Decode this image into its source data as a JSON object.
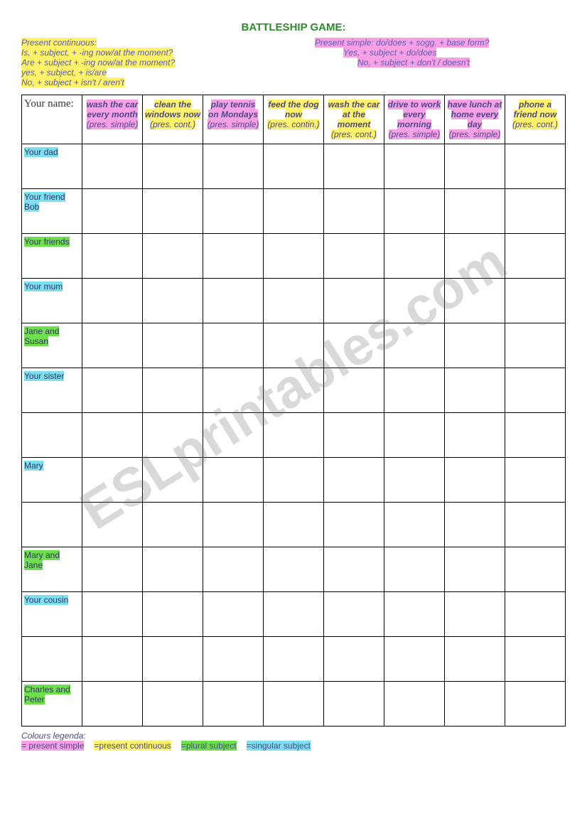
{
  "title": "BATTLESHIP GAME:",
  "watermark": "ESLprintables.com",
  "intro": {
    "left": {
      "heading": "Present continuous:",
      "l1": "Is, + subject, + -ing now/at the moment?",
      "l2": "Are + subject + -ing now/at the moment?",
      "l3": "yes, + subject, + is/are",
      "l4": "No, + subject + isn't / aren't"
    },
    "right": {
      "l1": "Present simple: do/does + sogg. + base form?",
      "l2": "Yes, + subject + do/does",
      "l3": "No, + subject + don't / doesn't"
    }
  },
  "corner": "Your name:",
  "columns": [
    {
      "action": "wash the car every month",
      "tense": "(pres. simple)",
      "hl": "hl-magenta"
    },
    {
      "action": "clean the windows now",
      "tense": "(pres. cont.)",
      "hl": "hl-yellow"
    },
    {
      "action": "play tennis on Mondays",
      "tense": "(pres. simple)",
      "hl": "hl-magenta"
    },
    {
      "action": "feed the dog now",
      "tense": "(pres. contin.)",
      "hl": "hl-yellow"
    },
    {
      "action": "wash the car at the moment",
      "tense": "(pres. cont.)",
      "hl": "hl-yellow"
    },
    {
      "action": "drive to work every morning",
      "tense": "(pres. simple)",
      "hl": "hl-magenta"
    },
    {
      "action": "have lunch at home every day",
      "tense": "(pres. simple)",
      "hl": "hl-magenta"
    },
    {
      "action": "phone a friend now",
      "tense": "(pres. cont.)",
      "hl": "hl-yellow"
    }
  ],
  "rows": [
    {
      "label": "Your dad",
      "hl": "hl-cyan"
    },
    {
      "label": "Your friend Bob",
      "hl": "hl-cyan"
    },
    {
      "label": "Your friends",
      "hl": "hl-green"
    },
    {
      "label": "Your mum",
      "hl": "hl-cyan"
    },
    {
      "label": "Jane and Susan",
      "hl": "hl-green"
    },
    {
      "label": "Your sister",
      "hl": "hl-cyan"
    },
    {
      "label": "",
      "hl": ""
    },
    {
      "label": "Mary",
      "hl": "hl-cyan"
    },
    {
      "label": "",
      "hl": ""
    },
    {
      "label": "Mary and Jane",
      "hl": "hl-green"
    },
    {
      "label": "Your cousin",
      "hl": "hl-cyan"
    },
    {
      "label": "",
      "hl": ""
    },
    {
      "label": "Charles and Peter",
      "hl": "hl-green"
    }
  ],
  "legend": {
    "heading": "Colours legenda:",
    "items": [
      {
        "text": "= present simple",
        "hl": "hl-magenta"
      },
      {
        "text": "=present continuous",
        "hl": "hl-yellow"
      },
      {
        "text": "=plural subject",
        "hl": "hl-green"
      },
      {
        "text": "=singular subject",
        "hl": "hl-cyan"
      }
    ]
  },
  "colors": {
    "yellow": "#fff26b",
    "magenta": "#f7a0e6",
    "cyan": "#7de0f0",
    "green": "#6fe04d",
    "title": "#2e8b2e",
    "text": "#4a4a8a",
    "border": "#000000"
  }
}
